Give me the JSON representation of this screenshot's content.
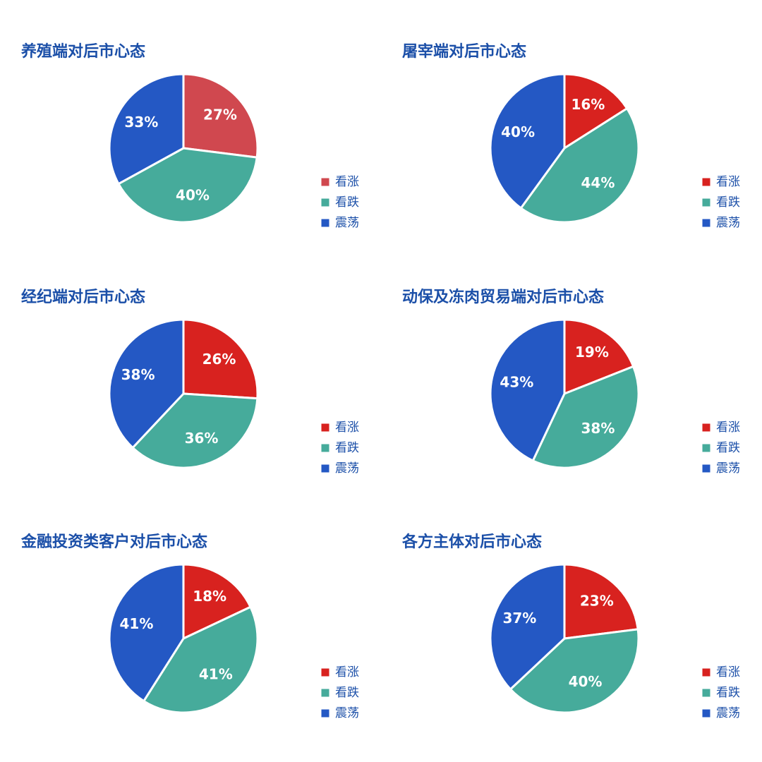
{
  "chart_data": [
    {
      "type": "pie",
      "title": "养殖端对后市心态",
      "categories": [
        "看涨",
        "看跌",
        "震荡"
      ],
      "values": [
        27,
        40,
        33
      ],
      "value_labels": [
        "27%",
        "40%",
        "33%"
      ],
      "colors": [
        "#d0484f",
        "#46ab9b",
        "#2458c4"
      ]
    },
    {
      "type": "pie",
      "title": "屠宰端对后市心态",
      "categories": [
        "看涨",
        "看跌",
        "震荡"
      ],
      "values": [
        16,
        44,
        40
      ],
      "value_labels": [
        "16%",
        "44%",
        "40%"
      ],
      "colors": [
        "#d8221f",
        "#46ab9b",
        "#2458c4"
      ]
    },
    {
      "type": "pie",
      "title": "经纪端对后市心态",
      "categories": [
        "看涨",
        "看跌",
        "震荡"
      ],
      "values": [
        26,
        36,
        38
      ],
      "value_labels": [
        "26%",
        "36%",
        "38%"
      ],
      "colors": [
        "#d8221f",
        "#46ab9b",
        "#2458c4"
      ]
    },
    {
      "type": "pie",
      "title": "动保及冻肉贸易端对后市心态",
      "categories": [
        "看涨",
        "看跌",
        "震荡"
      ],
      "values": [
        19,
        38,
        43
      ],
      "value_labels": [
        "19%",
        "38%",
        "43%"
      ],
      "colors": [
        "#d8221f",
        "#46ab9b",
        "#2458c4"
      ]
    },
    {
      "type": "pie",
      "title": "金融投资类客户对后市心态",
      "categories": [
        "看涨",
        "看跌",
        "震荡"
      ],
      "values": [
        18,
        41,
        41
      ],
      "value_labels": [
        "18%",
        "41%",
        "41%"
      ],
      "colors": [
        "#d8221f",
        "#46ab9b",
        "#2458c4"
      ]
    },
    {
      "type": "pie",
      "title": "各方主体对后市心态",
      "categories": [
        "看涨",
        "看跌",
        "震荡"
      ],
      "values": [
        23,
        40,
        37
      ],
      "value_labels": [
        "23%",
        "40%",
        "37%"
      ],
      "colors": [
        "#d8221f",
        "#46ab9b",
        "#2458c4"
      ]
    }
  ]
}
